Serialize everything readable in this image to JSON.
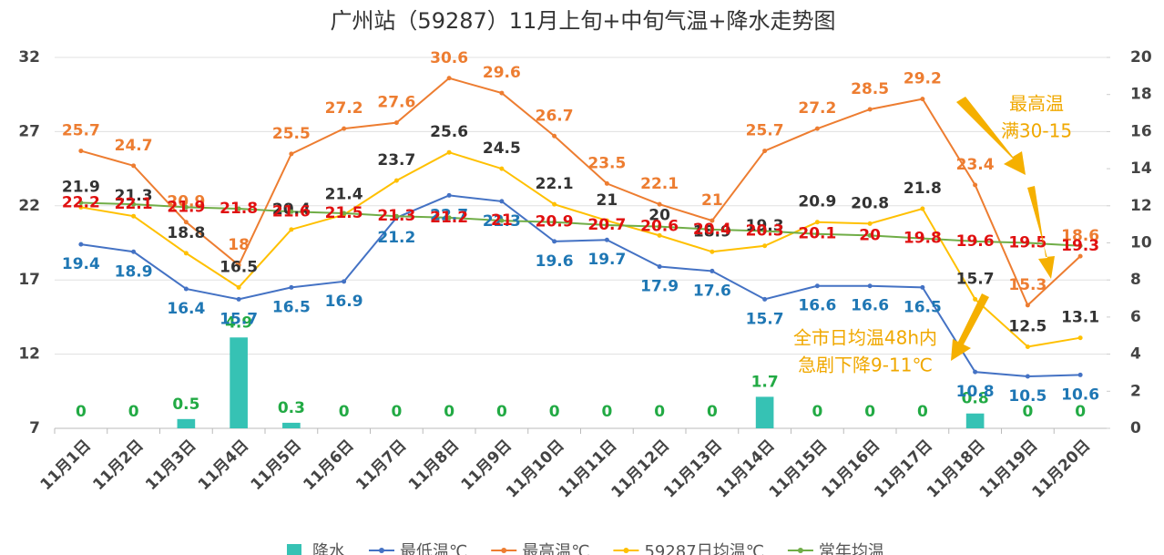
{
  "chart_data": {
    "type": "combo",
    "title": "广州站（59287）11月上旬+中旬气温+降水走势图",
    "categories": [
      "11月1日",
      "11月2日",
      "11月3日",
      "11月4日",
      "11月5日",
      "11月6日",
      "11月7日",
      "11月8日",
      "11月9日",
      "11月10日",
      "11月11日",
      "11月12日",
      "11月13日",
      "11月14日",
      "11月15日",
      "11月16日",
      "11月17日",
      "11月18日",
      "11月19日",
      "11月20日"
    ],
    "ylim": [
      7,
      32
    ],
    "yticks": [
      7,
      12,
      17,
      22,
      27,
      32
    ],
    "y2lim": [
      0,
      20
    ],
    "y2ticks": [
      0,
      2,
      4,
      6,
      8,
      10,
      12,
      14,
      16,
      18,
      20
    ],
    "series": [
      {
        "name": "降水",
        "type": "bar",
        "axis": "y2",
        "color": "#36c2b4",
        "label_color": "#22aa44",
        "values": [
          0,
          0,
          0.5,
          4.9,
          0.3,
          0,
          0,
          0,
          0,
          0,
          0,
          0,
          0,
          1.7,
          0,
          0,
          0,
          0.8,
          0,
          0
        ]
      },
      {
        "name": "最低温℃",
        "type": "line",
        "color": "#4472c4",
        "label_color": "#1f77b4",
        "values": [
          19.4,
          18.9,
          16.4,
          15.7,
          16.5,
          16.9,
          21.2,
          22.7,
          22.3,
          19.6,
          19.7,
          17.9,
          17.6,
          15.7,
          16.6,
          16.6,
          16.5,
          10.8,
          10.5,
          10.6
        ]
      },
      {
        "name": "最高温℃",
        "type": "line",
        "color": "#ed7d31",
        "label_color": "#ed7d31",
        "values": [
          25.7,
          24.7,
          20.9,
          18,
          25.5,
          27.2,
          27.6,
          30.6,
          29.6,
          26.7,
          23.5,
          22.1,
          21,
          25.7,
          27.2,
          28.5,
          29.2,
          23.4,
          15.3,
          18.6
        ]
      },
      {
        "name": "59287日均温℃",
        "type": "line",
        "color": "#ffc000",
        "label_color": "#333333",
        "values": [
          21.9,
          21.3,
          18.8,
          16.5,
          20.4,
          21.4,
          23.7,
          25.6,
          24.5,
          22.1,
          21,
          20,
          18.9,
          19.3,
          20.9,
          20.8,
          21.8,
          15.7,
          12.5,
          13.1
        ]
      },
      {
        "name": "常年均温",
        "type": "line",
        "color": "#70ad47",
        "label_color": "#e01010",
        "values": [
          22.2,
          22.1,
          21.9,
          21.8,
          21.6,
          21.5,
          21.3,
          21.2,
          21,
          20.9,
          20.7,
          20.6,
          20.4,
          20.3,
          20.1,
          20,
          19.8,
          19.6,
          19.5,
          19.3
        ]
      }
    ],
    "annotations": [
      {
        "lines": [
          "最高温",
          "满30-15"
        ],
        "color": "#f0a800"
      },
      {
        "lines": [
          "全市日均温48h内",
          "急剧下降9-11℃"
        ],
        "color": "#f0a800"
      }
    ]
  }
}
